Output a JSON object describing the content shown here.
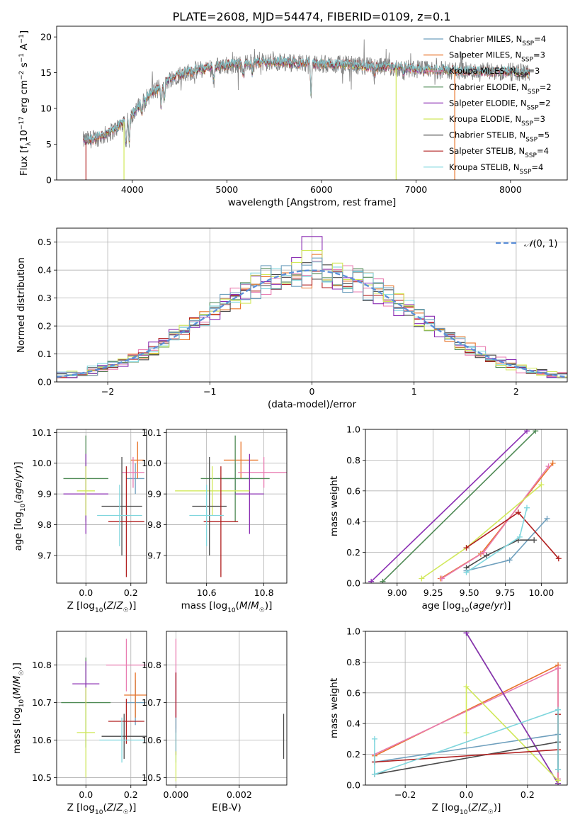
{
  "figure_title": "PLATE=2608, MJD=54474, FIBERID=0109, z=0.1",
  "colors": {
    "Chabrier MILES": "#6e9fbd",
    "Salpeter MILES": "#e8742a",
    "Kroupa MILES": "#e87bb0",
    "Chabrier ELODIE": "#4f8a55",
    "Salpeter ELODIE": "#8b2fb3",
    "Kroupa ELODIE": "#d1e85a",
    "Chabrier STELIB": "#4a4a4a",
    "Salpeter STELIB": "#b01e1e",
    "Kroupa STELIB": "#7fd6dd",
    "Gaussian": "#5b8fd9",
    "data_spectrum": "#808080"
  },
  "chart_data": [
    {
      "id": "spectrum",
      "type": "line",
      "title": "PLATE=2608, MJD=54474, FIBERID=0109, z=0.1",
      "xlabel": "wavelength [Angstrom, rest frame]",
      "ylabel": "Flux [f_λ 10^-17 erg cm^-2 s^-1 A^-1]",
      "xlim": [
        3200,
        8600
      ],
      "ylim": [
        0,
        21.5
      ],
      "xticks": [
        4000,
        5000,
        6000,
        7000,
        8000
      ],
      "yticks": [
        0,
        5,
        10,
        15,
        20
      ],
      "legend_placement": "right",
      "legend": [
        {
          "base": "Chabrier MILES, N",
          "sub": "SSP",
          "tail": "=4"
        },
        {
          "base": "Salpeter MILES, N",
          "sub": "SSP",
          "tail": "=3"
        },
        {
          "base": "Kroupa MILES, N",
          "sub": "SSP",
          "tail": "=3"
        },
        {
          "base": "Chabrier ELODIE, N",
          "sub": "SSP",
          "tail": "=2"
        },
        {
          "base": "Salpeter ELODIE, N",
          "sub": "SSP",
          "tail": "=2"
        },
        {
          "base": "Kroupa ELODIE, N",
          "sub": "SSP",
          "tail": "=3"
        },
        {
          "base": "Chabrier STELIB, N",
          "sub": "SSP",
          "tail": "=5"
        },
        {
          "base": "Salpeter STELIB, N",
          "sub": "SSP",
          "tail": "=4"
        },
        {
          "base": "Kroupa STELIB, N",
          "sub": "SSP",
          "tail": "=4"
        }
      ],
      "continuum_x": [
        3480,
        3600,
        3700,
        3800,
        3900,
        4000,
        4100,
        4200,
        4300,
        4400,
        4500,
        4700,
        4900,
        5100,
        5300,
        5500,
        5800,
        6000,
        6300,
        6600,
        6900,
        7100,
        7400,
        7600,
        8000,
        8200
      ],
      "continuum_y": [
        5.5,
        5.8,
        6.2,
        6.9,
        8.0,
        9.2,
        10.8,
        12.1,
        13.0,
        14.2,
        14.8,
        15.4,
        15.9,
        16.2,
        16.4,
        16.5,
        16.4,
        16.2,
        16.1,
        15.8,
        15.6,
        15.4,
        15.3,
        15.2,
        15.1,
        15.0
      ],
      "dropouts": [
        {
          "series": "Salpeter STELIB",
          "x": 3510
        },
        {
          "series": "Kroupa ELODIE",
          "x": 3912
        },
        {
          "series": "Kroupa ELODIE",
          "x": 6790
        },
        {
          "series": "Salpeter MILES",
          "x": 7410
        }
      ]
    },
    {
      "id": "residuals",
      "type": "histogram",
      "xlabel": "(data-model)/error",
      "ylabel": "Normed distribution",
      "xlim": [
        -2.5,
        2.5
      ],
      "ylim": [
        0,
        0.55
      ],
      "xticks": [
        -2,
        -1,
        0,
        1,
        2
      ],
      "yticks": [
        0.0,
        0.1,
        0.2,
        0.3,
        0.4,
        0.5
      ],
      "grid": true,
      "bin_width": 0.1,
      "bins_start": -2.5,
      "reference_curve": {
        "name": "N(0,1)",
        "mean": 0,
        "sigma": 1
      },
      "legend_placement": "top-right"
    },
    {
      "id": "age_vs_Z",
      "type": "errorbar",
      "xlabel": "Z [log10(Z/Z☉)]",
      "ylabel": "age [log10(age/yr)]",
      "xlim": [
        -0.13,
        0.27
      ],
      "ylim": [
        9.61,
        10.11
      ],
      "xticks": [
        0.0,
        0.2
      ],
      "yticks": [
        9.7,
        9.8,
        9.9,
        10.0,
        10.1
      ],
      "grid": true,
      "points": [
        {
          "series": "Chabrier MILES",
          "x": 0.22,
          "xerr": 0.04,
          "y": 9.95,
          "yerr": 0.05
        },
        {
          "series": "Salpeter MILES",
          "x": 0.23,
          "xerr": 0.03,
          "y": 10.01,
          "yerr": 0.06
        },
        {
          "series": "Kroupa MILES",
          "x": 0.21,
          "xerr": 0.05,
          "y": 9.97,
          "yerr": 0.05
        },
        {
          "series": "Chabrier ELODIE",
          "x": 0.0,
          "xerr": 0.1,
          "y": 9.95,
          "yerr": 0.14
        },
        {
          "series": "Salpeter ELODIE",
          "x": 0.0,
          "xerr": 0.1,
          "y": 9.9,
          "yerr": 0.13
        },
        {
          "series": "Kroupa ELODIE",
          "x": 0.0,
          "xerr": 0.04,
          "y": 9.91,
          "yerr": 0.08
        },
        {
          "series": "Chabrier STELIB",
          "x": 0.16,
          "xerr": 0.09,
          "y": 9.86,
          "yerr": 0.16
        },
        {
          "series": "Salpeter STELIB",
          "x": 0.18,
          "xerr": 0.08,
          "y": 9.81,
          "yerr": 0.18
        },
        {
          "series": "Kroupa STELIB",
          "x": 0.15,
          "xerr": 0.1,
          "y": 9.83,
          "yerr": 0.1
        }
      ]
    },
    {
      "id": "age_vs_mass",
      "type": "errorbar",
      "xlabel": "mass [log10(M/M☉)]",
      "xlim": [
        10.46,
        10.88
      ],
      "ylim": [
        9.61,
        10.11
      ],
      "xticks": [
        10.6,
        10.8
      ],
      "yticks": [
        9.7,
        9.8,
        9.9,
        10.0,
        10.1
      ],
      "grid": true,
      "points": [
        {
          "series": "Chabrier MILES",
          "x": 10.7,
          "xerr": 0.06,
          "y": 9.95,
          "yerr": 0.05
        },
        {
          "series": "Salpeter MILES",
          "x": 10.72,
          "xerr": 0.06,
          "y": 10.01,
          "yerr": 0.06
        },
        {
          "series": "Kroupa MILES",
          "x": 10.8,
          "xerr": 0.09,
          "y": 9.97,
          "yerr": 0.05
        },
        {
          "series": "Chabrier ELODIE",
          "x": 10.7,
          "xerr": 0.12,
          "y": 9.95,
          "yerr": 0.14
        },
        {
          "series": "Salpeter ELODIE",
          "x": 10.75,
          "xerr": 0.05,
          "y": 9.9,
          "yerr": 0.13
        },
        {
          "series": "Kroupa ELODIE",
          "x": 10.62,
          "xerr": 0.13,
          "y": 9.91,
          "yerr": 0.08
        },
        {
          "series": "Chabrier STELIB",
          "x": 10.61,
          "xerr": 0.06,
          "y": 9.86,
          "yerr": 0.16
        },
        {
          "series": "Salpeter STELIB",
          "x": 10.65,
          "xerr": 0.06,
          "y": 9.81,
          "yerr": 0.18
        },
        {
          "series": "Kroupa STELIB",
          "x": 10.6,
          "xerr": 0.06,
          "y": 9.83,
          "yerr": 0.1
        }
      ]
    },
    {
      "id": "weight_vs_age",
      "type": "line",
      "xlabel": "age [log10(age/yr)]",
      "ylabel": "mass weight",
      "xlim": [
        8.78,
        10.18
      ],
      "ylim": [
        0,
        1
      ],
      "xticks": [
        9.0,
        9.25,
        9.5,
        9.75,
        10.0
      ],
      "yticks": [
        0.0,
        0.2,
        0.4,
        0.6,
        0.8,
        1.0
      ],
      "grid": true,
      "series": [
        {
          "name": "Chabrier MILES",
          "x": [
            9.48,
            9.78,
            10.04
          ],
          "y": [
            0.08,
            0.15,
            0.42
          ]
        },
        {
          "name": "Salpeter MILES",
          "x": [
            9.3,
            9.58,
            10.08
          ],
          "y": [
            0.03,
            0.19,
            0.78
          ]
        },
        {
          "name": "Kroupa MILES",
          "x": [
            9.31,
            9.6,
            10.05
          ],
          "y": [
            0.03,
            0.2,
            0.76
          ]
        },
        {
          "name": "Chabrier ELODIE",
          "x": [
            8.9,
            9.96
          ],
          "y": [
            0.01,
            0.99
          ]
        },
        {
          "name": "Salpeter ELODIE",
          "x": [
            8.82,
            9.9
          ],
          "y": [
            0.01,
            0.99
          ]
        },
        {
          "name": "Kroupa ELODIE",
          "x": [
            9.17,
            9.48,
            10.0
          ],
          "y": [
            0.03,
            0.23,
            0.64
          ]
        },
        {
          "name": "Chabrier STELIB",
          "x": [
            9.48,
            9.62,
            9.84,
            9.95
          ],
          "y": [
            0.1,
            0.18,
            0.28,
            0.28
          ]
        },
        {
          "name": "Salpeter STELIB",
          "x": [
            9.48,
            9.84,
            10.12
          ],
          "y": [
            0.23,
            0.46,
            0.16
          ]
        },
        {
          "name": "Kroupa STELIB",
          "x": [
            9.48,
            9.85,
            9.9
          ],
          "y": [
            0.07,
            0.3,
            0.49
          ]
        }
      ]
    },
    {
      "id": "mass_vs_Z",
      "type": "errorbar",
      "xlabel": "Z [log10(Z/Z☉)]",
      "ylabel": "mass [log10(M/M☉)]",
      "xlim": [
        -0.13,
        0.27
      ],
      "ylim": [
        10.48,
        10.89
      ],
      "xticks": [
        0.0,
        0.2
      ],
      "yticks": [
        10.5,
        10.6,
        10.7,
        10.8
      ],
      "grid": true,
      "points": [
        {
          "series": "Chabrier MILES",
          "x": 0.22,
          "xerr": 0.04,
          "y": 10.7,
          "yerr": 0.06
        },
        {
          "series": "Salpeter MILES",
          "x": 0.22,
          "xerr": 0.05,
          "y": 10.72,
          "yerr": 0.06
        },
        {
          "series": "Kroupa MILES",
          "x": 0.18,
          "xerr": 0.09,
          "y": 10.8,
          "yerr": 0.07
        },
        {
          "series": "Chabrier ELODIE",
          "x": 0.0,
          "xerr": 0.11,
          "y": 10.7,
          "yerr": 0.12
        },
        {
          "series": "Salpeter ELODIE",
          "x": 0.0,
          "xerr": 0.06,
          "y": 10.75,
          "yerr": 0.06
        },
        {
          "series": "Kroupa ELODIE",
          "x": 0.0,
          "xerr": 0.04,
          "y": 10.62,
          "yerr": 0.12
        },
        {
          "series": "Chabrier STELIB",
          "x": 0.17,
          "xerr": 0.1,
          "y": 10.61,
          "yerr": 0.06
        },
        {
          "series": "Salpeter STELIB",
          "x": 0.18,
          "xerr": 0.08,
          "y": 10.65,
          "yerr": 0.06
        },
        {
          "series": "Kroupa STELIB",
          "x": 0.16,
          "xerr": 0.1,
          "y": 10.6,
          "yerr": 0.06
        }
      ]
    },
    {
      "id": "mass_vs_EBV",
      "type": "errorbar",
      "xlabel": "E(B-V)",
      "xlim": [
        -0.0003,
        0.0035
      ],
      "ylim": [
        10.48,
        10.89
      ],
      "xticks": [
        0.0,
        0.002
      ],
      "yticks": [
        10.5,
        10.6,
        10.7,
        10.8
      ],
      "grid": true,
      "points": [
        {
          "series": "Kroupa MILES",
          "x": 0.0,
          "y": 10.75,
          "yerr": 0.12
        },
        {
          "series": "Salpeter ELODIE",
          "x": 0.0,
          "y": 10.7,
          "yerr": 0.08
        },
        {
          "series": "Salpeter STELIB",
          "x": 0.0,
          "y": 10.67,
          "yerr": 0.11
        },
        {
          "series": "Kroupa STELIB",
          "x": 0.0,
          "y": 10.6,
          "yerr": 0.06
        },
        {
          "series": "Kroupa ELODIE",
          "x": 0.0,
          "y": 10.53,
          "yerr": 0.04
        },
        {
          "series": "Chabrier STELIB",
          "x": 0.0034,
          "y": 10.61,
          "yerr": 0.06
        }
      ]
    },
    {
      "id": "weight_vs_Z",
      "type": "line",
      "xlabel": "Z [log10(Z/Z☉)]",
      "ylabel": "mass weight",
      "xlim": [
        -0.33,
        0.33
      ],
      "ylim": [
        0,
        1
      ],
      "xticks": [
        -0.2,
        0.0,
        0.2
      ],
      "yticks": [
        0.0,
        0.2,
        0.4,
        0.6,
        0.8,
        1.0
      ],
      "grid": true,
      "series": [
        {
          "name": "Chabrier MILES",
          "x": [
            -0.3,
            0.3,
            0.3
          ],
          "y": [
            0.15,
            0.33,
            0.1
          ]
        },
        {
          "name": "Salpeter MILES",
          "x": [
            -0.3,
            0.3,
            0.3
          ],
          "y": [
            0.19,
            0.78,
            0.03
          ]
        },
        {
          "name": "Kroupa MILES",
          "x": [
            -0.3,
            0.3,
            0.3
          ],
          "y": [
            0.2,
            0.76,
            0.04
          ]
        },
        {
          "name": "Chabrier ELODIE",
          "x": [
            0.0,
            0.3
          ],
          "y": [
            0.99,
            0.01
          ]
        },
        {
          "name": "Salpeter ELODIE",
          "x": [
            0.0,
            0.3
          ],
          "y": [
            0.99,
            0.01
          ]
        },
        {
          "name": "Kroupa ELODIE",
          "x": [
            0.0,
            0.0,
            0.3
          ],
          "y": [
            0.34,
            0.64,
            0.03
          ]
        },
        {
          "name": "Chabrier STELIB",
          "x": [
            -0.3,
            0.3,
            0.3
          ],
          "y": [
            0.07,
            0.28,
            0.1
          ]
        },
        {
          "name": "Salpeter STELIB",
          "x": [
            -0.3,
            0.3,
            0.3
          ],
          "y": [
            0.15,
            0.23,
            0.46
          ]
        },
        {
          "name": "Kroupa STELIB",
          "x": [
            -0.3,
            -0.3,
            0.3,
            0.3
          ],
          "y": [
            0.3,
            0.07,
            0.49,
            0.1
          ]
        }
      ]
    }
  ]
}
